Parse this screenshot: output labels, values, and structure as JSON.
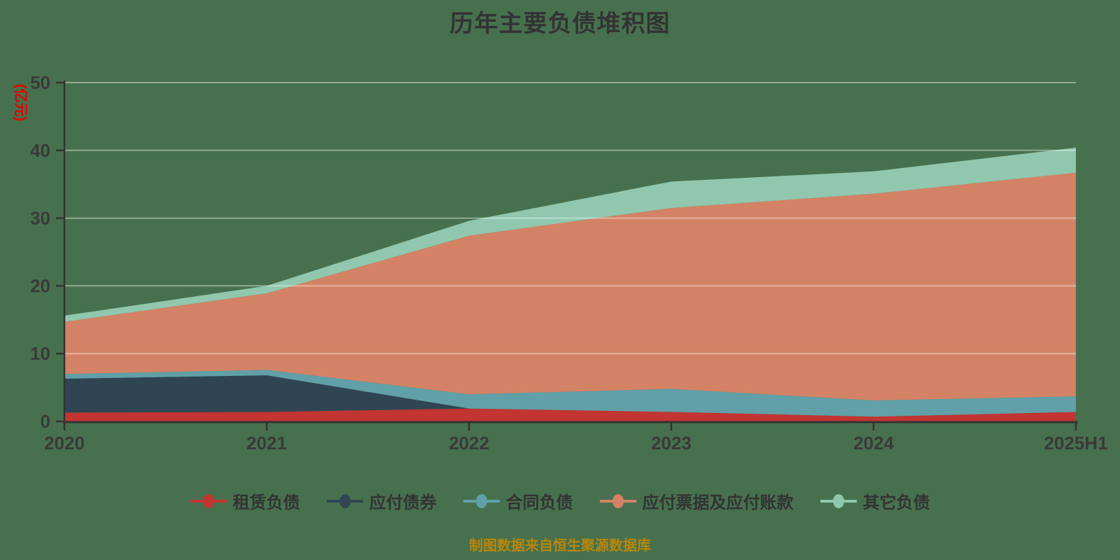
{
  "page": {
    "background_color": "#47714E"
  },
  "title": "历年主要负债堆积图",
  "y_axis_unit_label": "(亿元)",
  "y_axis_unit_color": "#E60000",
  "footer": {
    "text": "制图数据来自恒生聚源数据库",
    "color": "#B8860B"
  },
  "chart_data": {
    "type": "area",
    "stacked": true,
    "title": "历年主要负债堆积图",
    "ylabel": "(亿元)",
    "xlabel": "",
    "categories": [
      "2020",
      "2021",
      "2022",
      "2023",
      "2024",
      "2025H1"
    ],
    "series": [
      {
        "name": "租赁负债",
        "color": "#C23531",
        "values": [
          1.3,
          1.4,
          1.9,
          1.4,
          0.7,
          1.4
        ]
      },
      {
        "name": "应付债券",
        "color": "#2F4554",
        "values": [
          5.0,
          5.4,
          0.0,
          0.0,
          0.0,
          0.0
        ]
      },
      {
        "name": "合同负债",
        "color": "#61A0A8",
        "values": [
          0.7,
          0.8,
          2.1,
          3.4,
          2.4,
          2.3
        ]
      },
      {
        "name": "应付票据及应付账款",
        "color": "#D48265",
        "values": [
          7.7,
          11.3,
          23.4,
          26.7,
          30.5,
          33.0
        ]
      },
      {
        "name": "其它负债",
        "color": "#91C7AE",
        "values": [
          0.9,
          1.1,
          2.2,
          3.9,
          3.3,
          3.7
        ]
      }
    ],
    "stack_totals": [
      15.6,
      20.0,
      29.6,
      35.4,
      36.9,
      40.4
    ],
    "ylim": [
      0,
      50
    ],
    "y_ticks": [
      0,
      10,
      20,
      30,
      40,
      50
    ],
    "grid": true,
    "legend_position": "bottom",
    "axis_color": "#333333",
    "grid_color": "rgba(255,255,255,0.4)",
    "tick_label_color": "#3A3A3A"
  }
}
